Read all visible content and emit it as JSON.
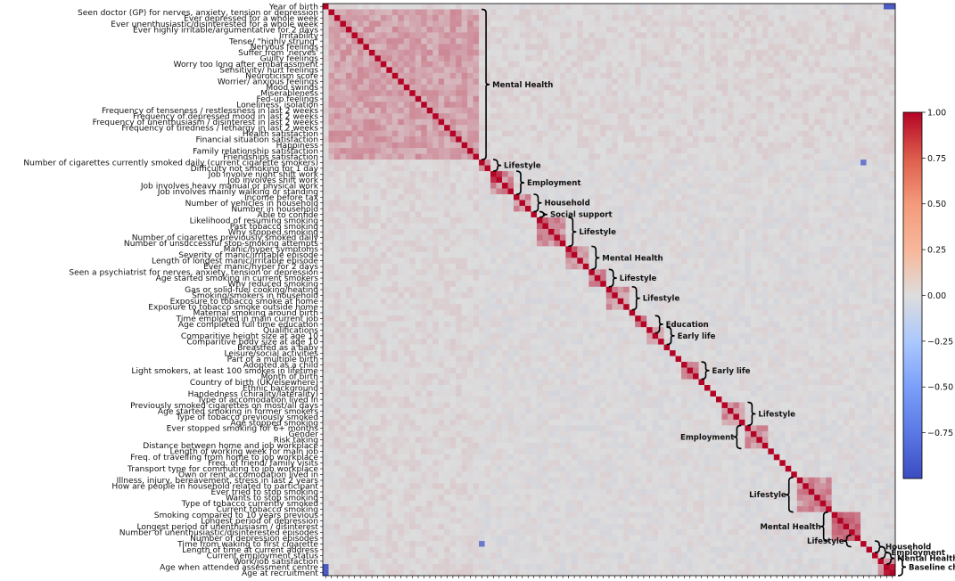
{
  "chart_data": {
    "type": "heatmap",
    "row_labels": [
      "Year of birth",
      "Seen doctor (GP) for nerves, anxiety, tension or depression",
      "Ever depressed for a whole week",
      "Ever unenthusiastic/disinterested for a whole week",
      "Ever highly irritable/argumentative for 2 days",
      "Irritability",
      "Tense/ \"highly strung\"",
      "Nervous feelings",
      "Suffer from 'nerves'",
      "Guilty feelings",
      "Worry too long after embarassment",
      "Sensitivity/ hurt feelings",
      "Neuroticism score",
      "Worrier/ anxious feelings",
      "Mood swings",
      "Miserableness",
      "Fed-up feelings",
      "Loneliness, isolation",
      "Frequency of tenseness / restlessness in last 2 weeks",
      "Frequency of depressed mood in last 2 weeks",
      "Frequency of unenthusiasm / disinterest in last 2 weeks",
      "Frequency of tiredness / lethargy in last 2 weeks",
      "Health satisfaction",
      "Financial situation satisfaction",
      "Happiness",
      "Family relationship satisfaction",
      "Friendships satisfaction",
      "Number of cigarettes currently smoked daily (current cigarette smokers)",
      "Difficulty not smoking for 1 day",
      "Job involve night shift work",
      "Job involves shift work",
      "Job involves heavy manual or physical work",
      "Job involves mainly walking or standing",
      "Income before tax",
      "Number of vehicles in household",
      "Number in household",
      "Able to confide",
      "Likelihood of resuming smoking",
      "Past tobacco smoking",
      "Why stopped smoking",
      "Number of cigarettes previously smoked daily",
      "Number of unsuccessful stop-smoking attempts",
      "Manic/hyper symptoms",
      "Severity of manic/irritable episode",
      "Length of longest manic/irritable episode",
      "Ever manic/hyper for 2 days",
      "Seen a psychiatrist for nerves, anxiety, tension or depression",
      "Age started smoking in current smokers",
      "Why reduced smoking",
      "Gas or solid-fuel cooking/heating",
      "Smoking/smokers in household",
      "Exposure to tobacco smoke at home",
      "Exposure to tobacco smoke outside home",
      "Maternal smoking around birth",
      "Time employed in main current job",
      "Age completed full time education",
      "Qualifications",
      "Comparitive height size at age 10",
      "Comparitive body size at age 10",
      "Breastfed as a baby",
      "Leisure/social activities",
      "Part of a multiple birth",
      "Adopted as a child",
      "Light smokers, at least 100 smokes in lifetime",
      "Month of birth",
      "Country of birth (UK/elsewhere)",
      "Ethnic background",
      "Handedness (chirality/laterality)",
      "Type of accomodation lived in",
      "Previously smoked cigarettes on most/all days",
      "Age started smoking in former smokers",
      "Type of tobacco previously smoked",
      "Age stopped smoking",
      "Ever stopped smoking for 6+ months",
      "Gender",
      "Risk taking",
      "Distance between home and job workplace",
      "Length of working week for main job",
      "Freq. of travelling from home to job workplace",
      "Freq. of friend/ family visits",
      "Transport type for commuting to job workplace",
      "Own or rent accomodation lived in",
      "Illness, injury, bereavement, stress in last 2 years",
      "How are people in household related to participant",
      "Ever tried to stop smoking",
      "Wants to stop smoking",
      "Type of tobacco currently smoked",
      "Current tobacco smoking",
      "Smoking compared to 10 years previous",
      "Longest period of depression",
      "Longest period of unenthusiasm / disinterest",
      "Number of unenthusiastic/disinterested episodes",
      "Number of depression episodes",
      "Time from waking to first cigarette",
      "Length of time at current address",
      "Current employment status",
      "Work/job satisfaction",
      "Age when attended assessment centre",
      "Age at recruitment"
    ],
    "groups": [
      {
        "label": "Mental Health",
        "start": 1,
        "end": 26
      },
      {
        "label": "Lifestyle",
        "start": 27,
        "end": 28
      },
      {
        "label": "Employment",
        "start": 29,
        "end": 32
      },
      {
        "label": "Household",
        "start": 33,
        "end": 35
      },
      {
        "label": "Social support",
        "start": 36,
        "end": 36
      },
      {
        "label": "Lifestyle",
        "start": 37,
        "end": 41
      },
      {
        "label": "Mental Health",
        "start": 42,
        "end": 45
      },
      {
        "label": "Lifestyle",
        "start": 46,
        "end": 48
      },
      {
        "label": "Lifestyle",
        "start": 49,
        "end": 52
      },
      {
        "label": "Education",
        "start": 54,
        "end": 56
      },
      {
        "label": "Early life",
        "start": 56,
        "end": 58
      },
      {
        "label": "Early life",
        "start": 62,
        "end": 64
      },
      {
        "label": "Lifestyle",
        "start": 69,
        "end": 72
      },
      {
        "label": "Employment",
        "start": 73,
        "end": 76
      },
      {
        "label": "Lifestyle",
        "start": 82,
        "end": 87
      },
      {
        "label": "Mental Health",
        "start": 88,
        "end": 92
      },
      {
        "label": "Lifestyle",
        "start": 92,
        "end": 93
      },
      {
        "label": "Household",
        "start": 93,
        "end": 94
      },
      {
        "label": "Employment",
        "start": 94,
        "end": 95
      },
      {
        "label": "Mental Health",
        "start": 95,
        "end": 96
      },
      {
        "label": "Baseline characteristics",
        "start": 96,
        "end": 98
      }
    ],
    "colorbar": {
      "min": -1.0,
      "max": 1.0,
      "ticks": [
        "1.00",
        "0.75",
        "0.50",
        "0.25",
        "0.00",
        "−0.25",
        "−0.50",
        "−0.75"
      ],
      "colors": [
        "#3b4cc0",
        "#dddddd",
        "#b40426"
      ]
    },
    "diagonal_value": 1.0,
    "notable_correlations": [
      {
        "row": 0,
        "col": 97,
        "value": -0.9
      },
      {
        "row": 0,
        "col": 98,
        "value": -0.9
      },
      {
        "row": 27,
        "col": 93,
        "value": -0.7
      },
      {
        "row": 29,
        "col": 30,
        "value": 0.8
      },
      {
        "row": 37,
        "col": 38,
        "value": 0.6
      },
      {
        "row": 42,
        "col": 43,
        "value": 0.6
      },
      {
        "row": 88,
        "col": 89,
        "value": 0.6
      },
      {
        "row": 89,
        "col": 90,
        "value": 0.6
      },
      {
        "row": 90,
        "col": 91,
        "value": 0.5
      },
      {
        "row": 97,
        "col": 98,
        "value": 0.9
      }
    ]
  }
}
